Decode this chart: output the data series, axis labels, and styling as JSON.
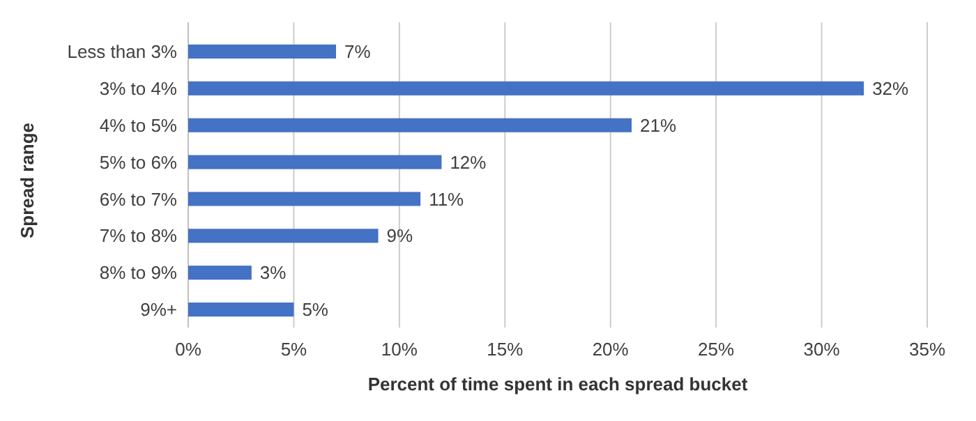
{
  "chart_data": {
    "type": "bar",
    "orientation": "horizontal",
    "xlabel": "Percent of time spent in each spread bucket",
    "ylabel": "Spread range",
    "categories": [
      "Less than 3%",
      "3% to 4%",
      "4% to 5%",
      "5% to 6%",
      "6% to 7%",
      "7% to 8%",
      "8% to 9%",
      "9%+"
    ],
    "values": [
      7,
      32,
      21,
      12,
      11,
      9,
      3,
      5
    ],
    "value_labels": [
      "7%",
      "32%",
      "21%",
      "12%",
      "11%",
      "9%",
      "3%",
      "5%"
    ],
    "color": "#4472c4",
    "xlim": [
      0,
      35
    ],
    "xticks": [
      {
        "value": 0,
        "label": "0%"
      },
      {
        "value": 5,
        "label": "5%"
      },
      {
        "value": 10,
        "label": "10%"
      },
      {
        "value": 15,
        "label": "15%"
      },
      {
        "value": 20,
        "label": "20%"
      },
      {
        "value": 25,
        "label": "25%"
      },
      {
        "value": 30,
        "label": "30%"
      },
      {
        "value": 35,
        "label": "35%"
      }
    ],
    "grid": "x"
  }
}
